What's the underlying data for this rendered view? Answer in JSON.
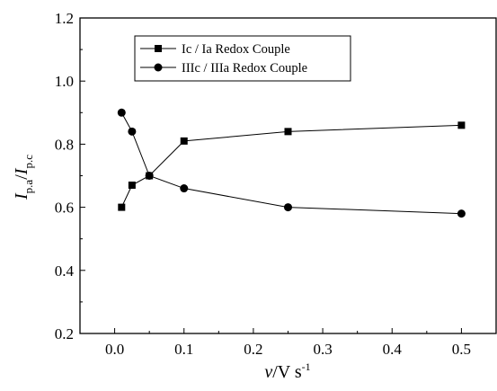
{
  "chart_data": {
    "type": "line",
    "xlabel": {
      "main": "v",
      "rest": "/V s",
      "sup": "-1"
    },
    "ylabel": {
      "i1": "I",
      "sub1": "p.a",
      "slash": "/",
      "i2": "I",
      "sub2": "p.c"
    },
    "xlim": [
      -0.05,
      0.55
    ],
    "ylim": [
      0.2,
      1.2
    ],
    "x_ticks": [
      0.0,
      0.1,
      0.2,
      0.3,
      0.4,
      0.5
    ],
    "x_tick_labels": [
      "0.0",
      "0.1",
      "0.2",
      "0.3",
      "0.4",
      "0.5"
    ],
    "y_ticks": [
      0.2,
      0.4,
      0.6,
      0.8,
      1.0,
      1.2
    ],
    "y_tick_labels": [
      "0.2",
      "0.4",
      "0.6",
      "0.8",
      "1.0",
      "1.2"
    ],
    "grid": false,
    "legend_position": "top-left",
    "series": [
      {
        "name": "Ic / Ia Redox Couple",
        "marker": "square",
        "color": "#000000",
        "x": [
          0.01,
          0.025,
          0.05,
          0.1,
          0.25,
          0.5
        ],
        "y": [
          0.6,
          0.67,
          0.7,
          0.81,
          0.84,
          0.86
        ]
      },
      {
        "name": "IIIc / IIIa Redox Couple",
        "marker": "circle",
        "color": "#000000",
        "x": [
          0.01,
          0.025,
          0.05,
          0.1,
          0.25,
          0.5
        ],
        "y": [
          0.9,
          0.84,
          0.7,
          0.66,
          0.6,
          0.58
        ]
      }
    ]
  }
}
